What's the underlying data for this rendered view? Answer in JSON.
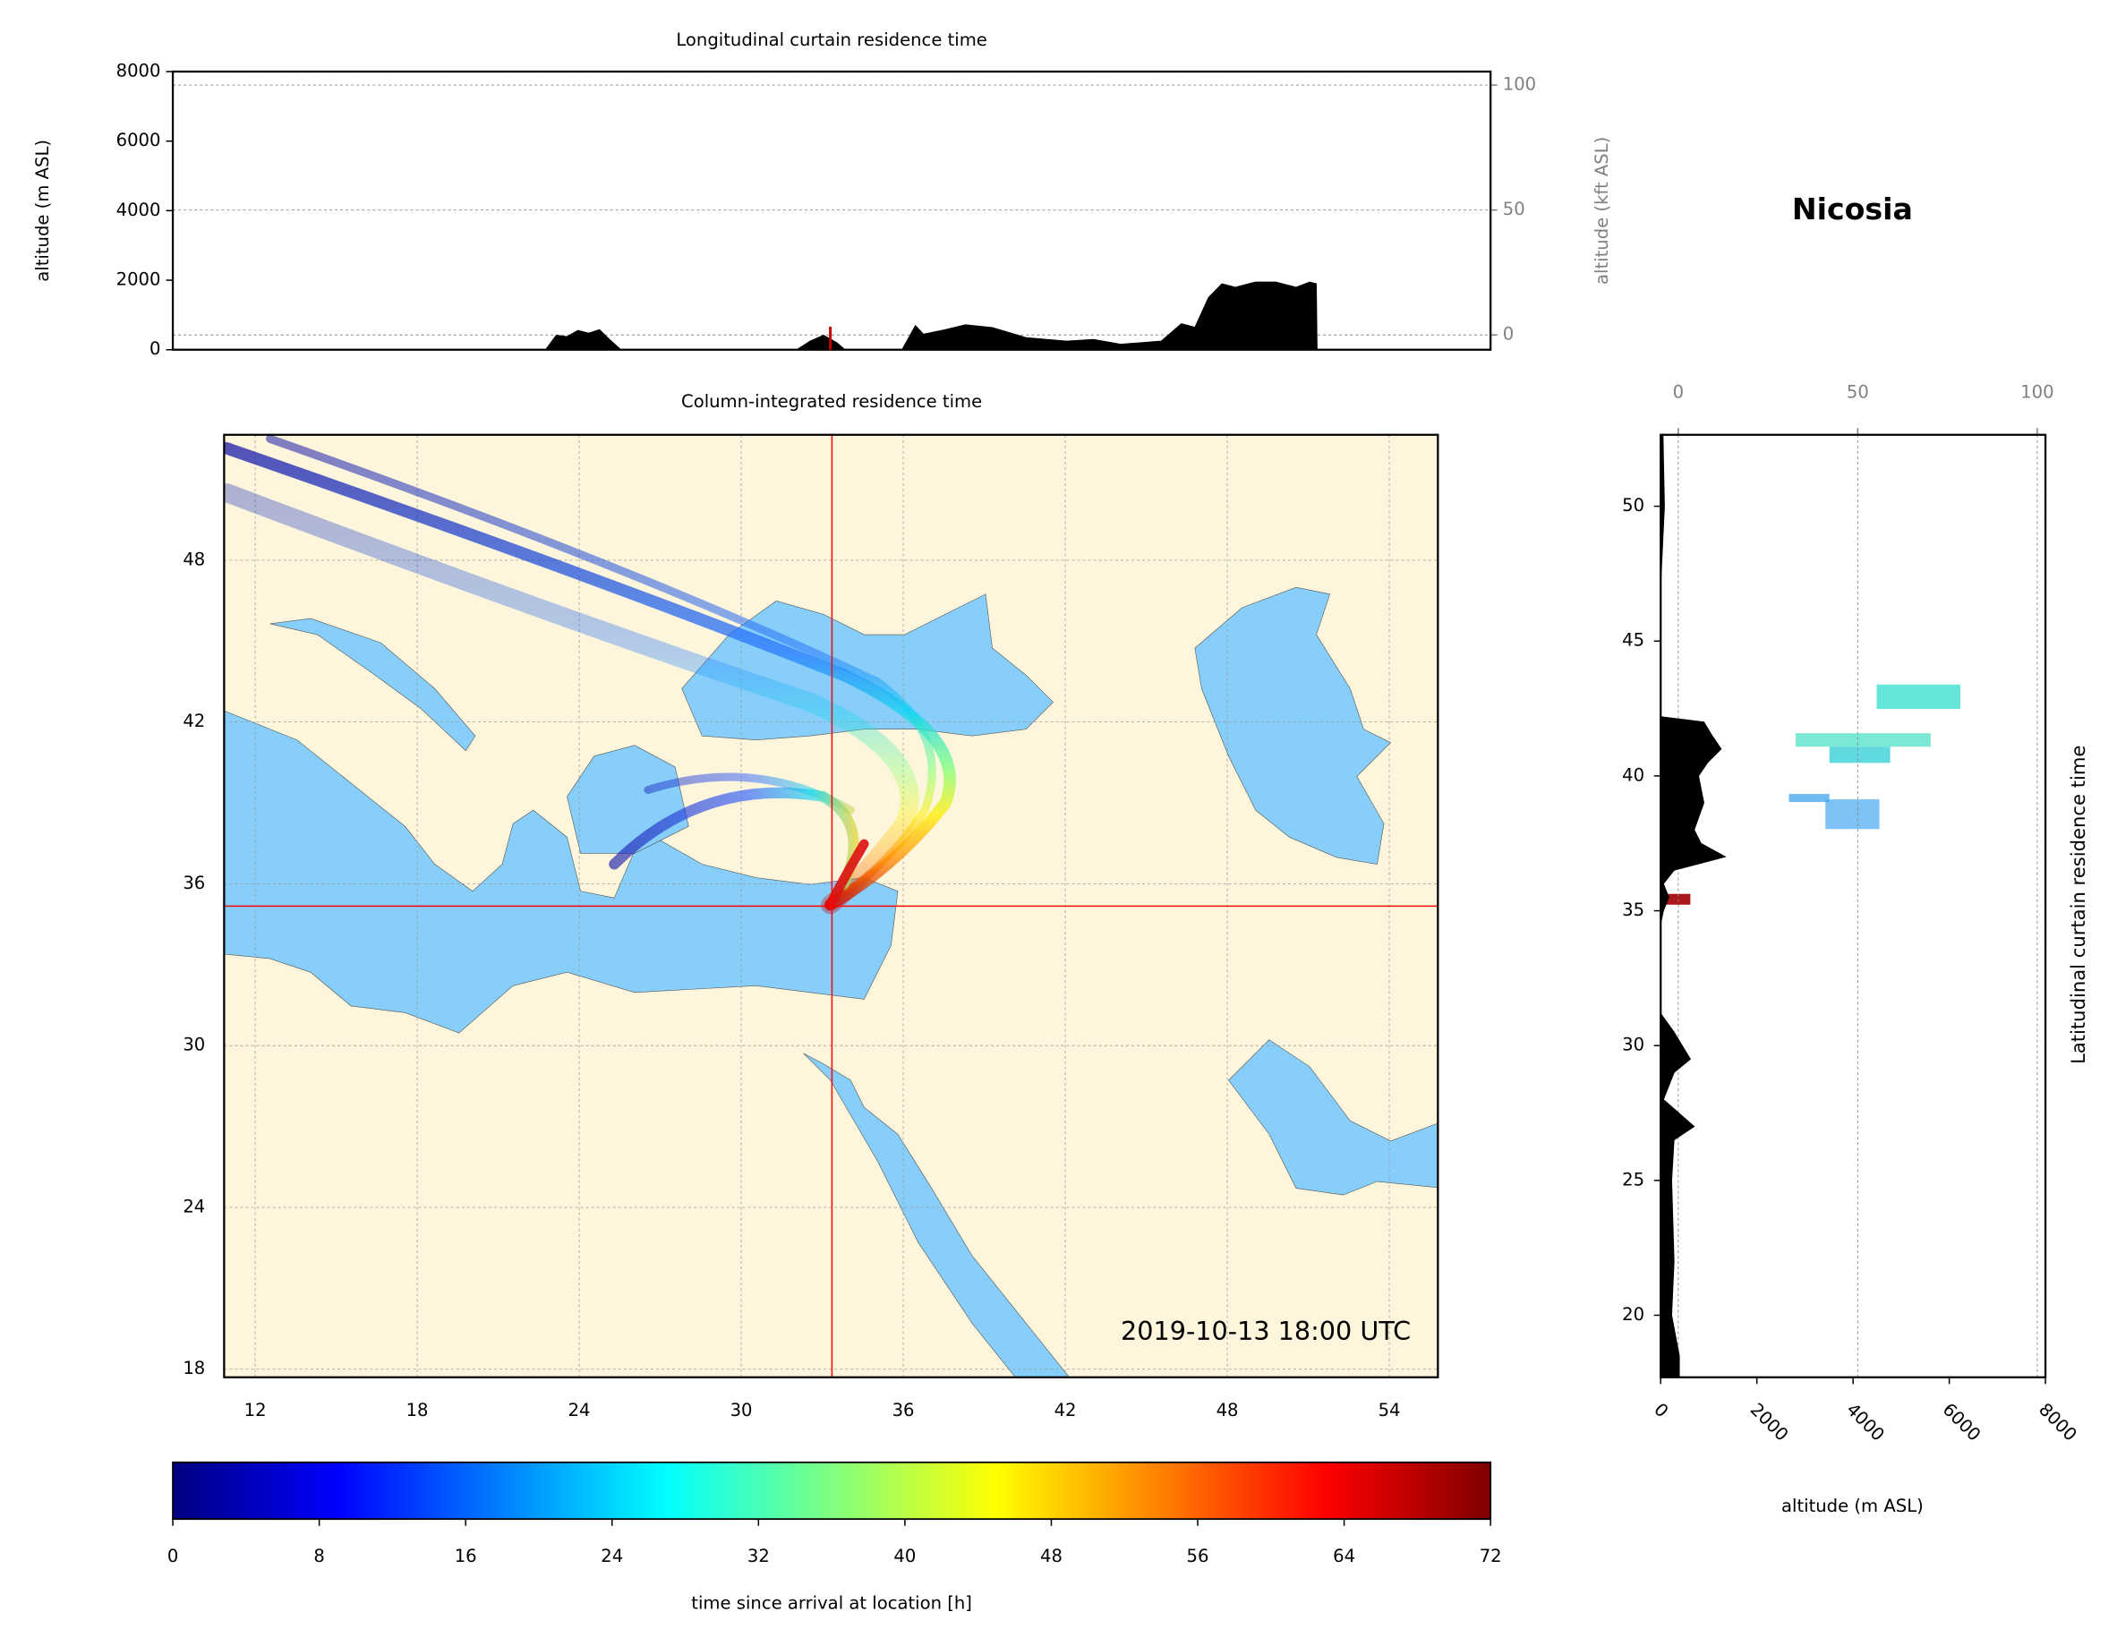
{
  "chart_data": [
    {
      "type": "area",
      "title": "Longitudinal curtain residence time",
      "y_label": "altitude (m ASL)",
      "y2_label": "altitude (kft ASL)",
      "x": [
        22.8,
        23.2,
        23.6,
        24.0,
        24.4,
        24.8,
        25.2,
        25.6,
        32.1,
        32.6,
        33.1,
        33.6,
        33.9,
        36.0,
        36.5,
        36.8,
        37.6,
        38.35,
        39.35,
        40.6,
        42.1,
        43.1,
        44.1,
        45.6,
        46.35,
        46.85,
        47.35,
        47.85,
        48.35,
        49.1,
        49.85,
        50.6,
        51.1,
        51.35,
        51.38
      ],
      "values": [
        0,
        420,
        380,
        560,
        480,
        580,
        280,
        0,
        0,
        250,
        420,
        200,
        0,
        0,
        700,
        450,
        580,
        720,
        640,
        350,
        250,
        300,
        160,
        250,
        750,
        650,
        1500,
        1900,
        1800,
        1950,
        1950,
        1800,
        1950,
        1900,
        0
      ],
      "color": "#000000",
      "xlim": [
        9,
        57.8
      ],
      "ylim": [
        0,
        8000
      ],
      "yticks": [
        0,
        2000,
        4000,
        6000,
        8000
      ],
      "y2lim": [
        -5.9,
        105.4
      ],
      "y2ticks": [
        0,
        50,
        100
      ],
      "grid": true
    },
    {
      "type": "map",
      "title": "Column-integrated residence time",
      "annotation": "2019-10-13 18:00 UTC",
      "xlim": [
        10.85,
        55.8
      ],
      "ylim": [
        17.7,
        52.65
      ],
      "xticks": [
        12,
        18,
        24,
        30,
        36,
        42,
        48,
        54
      ],
      "yticks": [
        18,
        24,
        30,
        36,
        42,
        48
      ],
      "marker": {
        "lon": 33.36,
        "lat": 35.17,
        "color": "#ff0000"
      },
      "grid": true
    },
    {
      "type": "colorbar",
      "label": "time since arrival at location [h]",
      "colormap": "jet",
      "clim": [
        0,
        72
      ],
      "ticks": [
        0,
        8,
        16,
        24,
        32,
        40,
        48,
        56,
        64,
        72
      ]
    },
    {
      "type": "area",
      "orientation": "horizontal",
      "title": "Nicosia",
      "y_label": "Latitudinal curtain residence time",
      "x_label": "altitude (m ASL)",
      "y": [
        52.65,
        50,
        47,
        46,
        42.2,
        42,
        41.5,
        41,
        40.5,
        40,
        39,
        38,
        37.5,
        37,
        36.5,
        36,
        35.5,
        35,
        34.5,
        31.2,
        30.5,
        29.5,
        29,
        28,
        27,
        26.5,
        25,
        22,
        20,
        18.5,
        17.7
      ],
      "values": [
        50,
        80,
        0,
        0,
        0,
        900,
        1070,
        1260,
        980,
        790,
        900,
        700,
        840,
        1350,
        280,
        60,
        170,
        60,
        0,
        0,
        280,
        620,
        280,
        60,
        700,
        280,
        230,
        280,
        230,
        390,
        390
      ],
      "color": "#000000",
      "xlim": [
        0,
        8000
      ],
      "xticks": [
        0,
        2000,
        4000,
        6000,
        8000
      ],
      "x2lim": [
        -4.9,
        102.3
      ],
      "x2ticks": [
        0,
        50,
        100
      ],
      "ylim": [
        17.7,
        52.65
      ],
      "yticks": [
        20,
        25,
        30,
        35,
        40,
        45,
        50
      ],
      "grid": true
    }
  ]
}
